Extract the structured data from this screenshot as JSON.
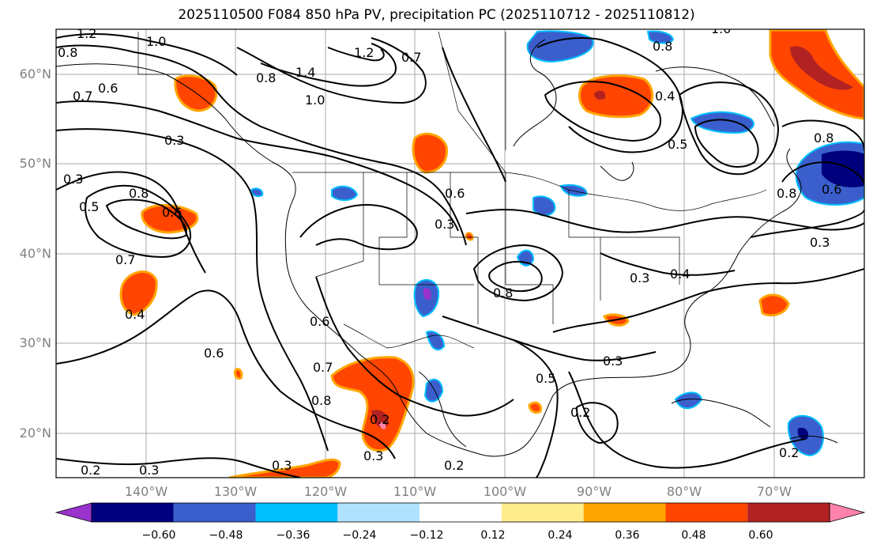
{
  "title": "2025110500 F084 850 hPa PV, precipitation PC (2025110712 - 2025110812)",
  "lat_labels": [
    "60°N",
    "50°N",
    "40°N",
    "30°N",
    "20°N"
  ],
  "lon_labels": [
    "140°W",
    "130°W",
    "120°W",
    "110°W",
    "100°W",
    "90°W",
    "80°W",
    "70°W"
  ],
  "colorbar": {
    "ticks": [
      "−0.60",
      "−0.48",
      "−0.36",
      "−0.24",
      "−0.12",
      "0.12",
      "0.24",
      "0.36",
      "0.48",
      "0.60"
    ],
    "colors": [
      "#9a32cd",
      "#00007f",
      "#3a5fcd",
      "#00bfff",
      "#b0e2ff",
      "#ffffff",
      "#ffec8b",
      "#ffa500",
      "#ff4500",
      "#b22222",
      "#ff82ab"
    ]
  },
  "contour_labels": [
    "1.2",
    "1.0",
    "0.8",
    "1.4",
    "1.0",
    "0.8",
    "0.7",
    "1.2",
    "0.7",
    "0.6",
    "0.3",
    "0.5",
    "0.8",
    "0.6",
    "0.7",
    "0.3",
    "0.4",
    "0.6",
    "0.6",
    "0.7",
    "0.8",
    "0.2",
    "0.3",
    "0.3",
    "0.2",
    "0.3",
    "0.3",
    "0.6",
    "0.8",
    "0.5",
    "0.3",
    "0.2",
    "0.3",
    "0.4",
    "0.4",
    "0.5",
    "0.8",
    "0.6",
    "0.3",
    "0.8",
    "0.2",
    "1.0",
    "0.8",
    "0.2"
  ]
}
